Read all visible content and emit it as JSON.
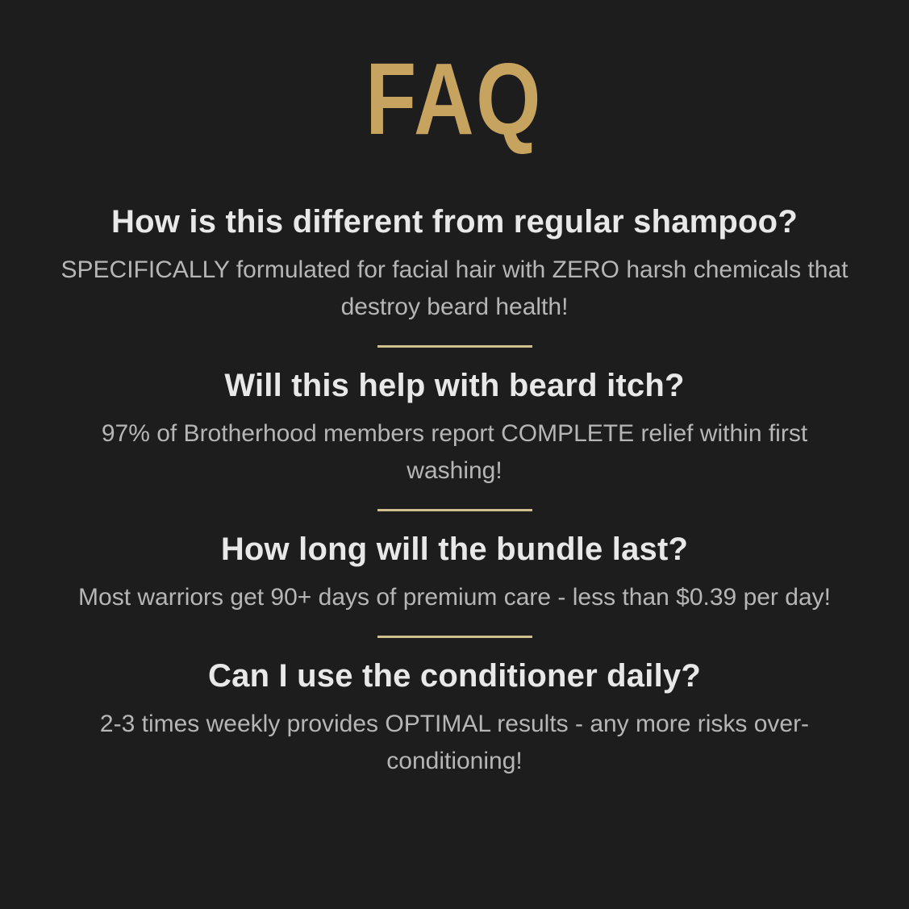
{
  "title": "FAQ",
  "theme": {
    "background": "#1d1d1e",
    "title_gold": "#c7a360",
    "divider_gold": "#cfc08e",
    "question_color": "#e8e8e8",
    "answer_color": "#b6b6b6"
  },
  "faq_items": [
    {
      "question": "How is this different from regular shampoo?",
      "answer": "SPECIFICALLY formulated for facial hair with ZERO harsh chemicals that destroy beard health!"
    },
    {
      "question": "Will this help with beard itch?",
      "answer": "97% of Brotherhood members report COMPLETE relief within first washing!"
    },
    {
      "question": "How long will the bundle last?",
      "answer": "Most warriors get 90+ days of premium care - less than $0.39 per day!"
    },
    {
      "question": "Can I use the conditioner daily?",
      "answer": "2-3 times weekly provides OPTIMAL results - any more risks over-conditioning!"
    }
  ]
}
